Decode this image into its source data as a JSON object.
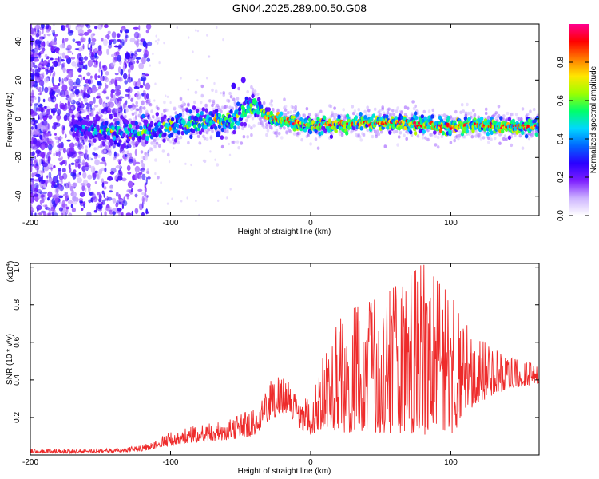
{
  "title": "GN04.2025.289.00.50.G08",
  "colors": {
    "snr_line": "#ee2b2b",
    "colormap": [
      "#ffffff",
      "#cdb4ff",
      "#7d1fff",
      "#2a00ff",
      "#0066ff",
      "#00d7ff",
      "#00ff6a",
      "#9cff00",
      "#ffe600",
      "#ff7a00",
      "#ff0000",
      "#ff0090"
    ]
  },
  "chart_data": [
    {
      "type": "heatmap",
      "title": "GN04.2025.289.00.50.G08",
      "xlabel": "Height of straight line (km)",
      "ylabel": "Frequency (Hz)",
      "xlim": [
        -200,
        163
      ],
      "ylim": [
        -50,
        49
      ],
      "x_ticks": [
        -200,
        -100,
        0,
        100
      ],
      "y_ticks": [
        -40,
        -20,
        0,
        20,
        40
      ],
      "ridge": {
        "x": [
          -168,
          -150,
          -130,
          -110,
          -95,
          -80,
          -70,
          -60,
          -50,
          -45,
          -40,
          -30,
          -20,
          -10,
          0,
          20,
          40,
          60,
          80,
          100,
          120,
          140,
          163
        ],
        "freq": [
          -4,
          -6,
          -7,
          -6,
          -3,
          -2,
          0,
          -1,
          2,
          5,
          6,
          1,
          -1,
          -2,
          -3,
          -3,
          -2,
          -2,
          -3,
          -4,
          -3,
          -4,
          -4
        ]
      },
      "colorbar": {
        "label": "Normalized spectral amplitude",
        "range": [
          0.0,
          1.0
        ],
        "ticks": [
          "0.0",
          "0.2",
          "0.4",
          "0.6",
          "0.8"
        ]
      }
    },
    {
      "type": "line",
      "xlabel": "Height of straight line (km)",
      "ylabel": "SNR (10 * v/v)",
      "multiplier_label": "(x10",
      "multiplier_exp": "4",
      "xlim": [
        -200,
        163
      ],
      "ylim": [
        0.0,
        1.02
      ],
      "x_ticks": [
        -200,
        -100,
        0,
        100
      ],
      "y_ticks": [
        "0.2",
        "0.4",
        "0.6",
        "0.8",
        "1.0"
      ],
      "envelope": {
        "x": [
          -200,
          -150,
          -120,
          -100,
          -80,
          -60,
          -40,
          -30,
          -20,
          -15,
          -10,
          0,
          10,
          20,
          30,
          50,
          70,
          80,
          90,
          100,
          110,
          120,
          140,
          163
        ],
        "base": [
          0.01,
          0.01,
          0.02,
          0.05,
          0.07,
          0.08,
          0.1,
          0.18,
          0.22,
          0.22,
          0.15,
          0.1,
          0.15,
          0.12,
          0.12,
          0.12,
          0.1,
          0.1,
          0.15,
          0.1,
          0.2,
          0.28,
          0.35,
          0.38
        ],
        "peak": [
          0.03,
          0.03,
          0.05,
          0.12,
          0.16,
          0.18,
          0.25,
          0.4,
          0.42,
          0.4,
          0.3,
          0.3,
          0.55,
          0.72,
          0.78,
          0.84,
          0.95,
          1.02,
          0.93,
          0.85,
          0.72,
          0.62,
          0.52,
          0.48
        ]
      }
    }
  ]
}
